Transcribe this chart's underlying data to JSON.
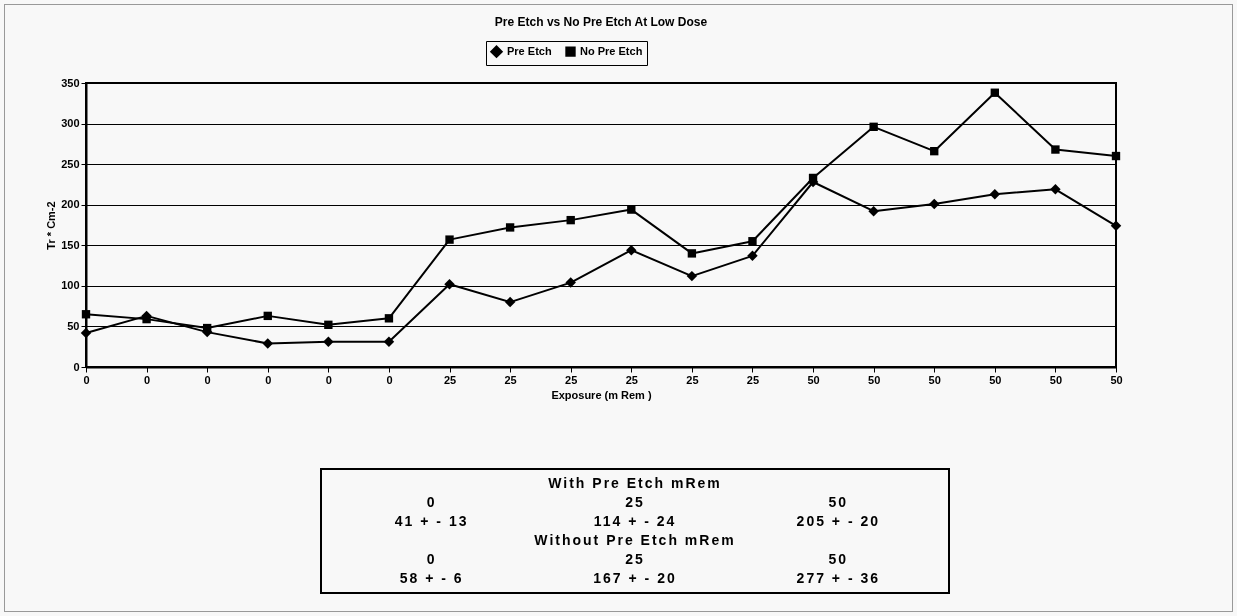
{
  "chart_data": {
    "type": "line",
    "title": "Pre Etch vs No Pre Etch At Low Dose",
    "xlabel": "Exposure (m Rem )",
    "ylabel": "Tr * Cm-2",
    "categories": [
      "0",
      "0",
      "0",
      "0",
      "0",
      "0",
      "25",
      "25",
      "25",
      "25",
      "25",
      "25",
      "50",
      "50",
      "50",
      "50",
      "50",
      "50"
    ],
    "series": [
      {
        "name": "Pre Etch",
        "color": "#000000",
        "marker": "diamond",
        "values": [
          42,
          63,
          43,
          29,
          31,
          31,
          102,
          80,
          104,
          144,
          112,
          137,
          228,
          192,
          201,
          213,
          219,
          174
        ]
      },
      {
        "name": "No Pre Etch",
        "color": "#000000",
        "marker": "square",
        "values": [
          65,
          59,
          48,
          63,
          52,
          60,
          157,
          172,
          181,
          194,
          140,
          155,
          233,
          296,
          266,
          338,
          268,
          260
        ]
      }
    ],
    "ylim": [
      0,
      350
    ],
    "yticks": [
      0,
      50,
      100,
      150,
      200,
      250,
      300,
      350
    ],
    "grid": "y",
    "legend": "top",
    "annotations": [
      "With Pre Etch   mRem",
      "0",
      "25",
      "50",
      "41 + - 13",
      "114 + - 24",
      "205 + - 20",
      "Without Pre Etch   mRem",
      "0",
      "25",
      "50",
      "58 + - 6",
      "167 + - 20",
      "277 + - 36"
    ]
  }
}
